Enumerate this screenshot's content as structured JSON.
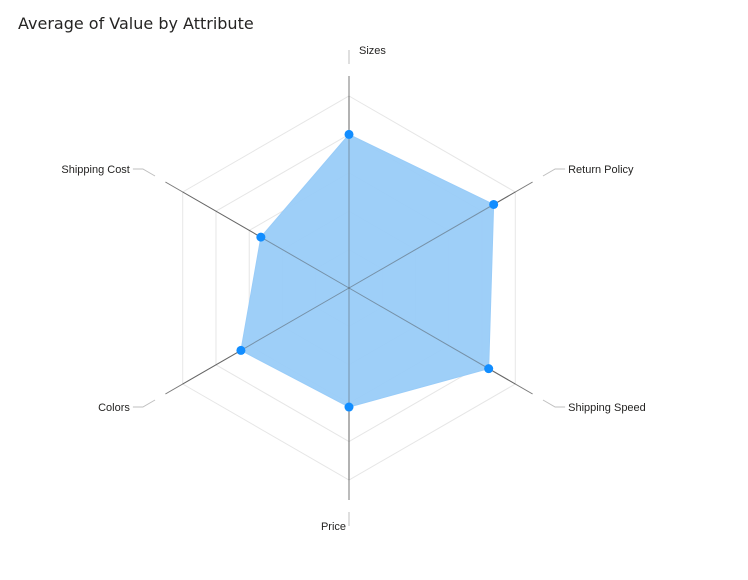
{
  "visual": {
    "title": "Average of Value by Attribute"
  },
  "colors": {
    "series_fill": "#99CCF8",
    "series_point": "#118DFF",
    "axis_line": "#4D4D4D",
    "grid_line": "#E6E6E6",
    "leader_line": "#BFBFBF",
    "text": "#252423"
  },
  "chart_data": {
    "type": "radar",
    "title": "Average of Value by Attribute",
    "categories": [
      "Sizes",
      "Return Policy",
      "Shipping Speed",
      "Price",
      "Colors",
      "Shipping Cost"
    ],
    "series": [
      {
        "values": [
          8.0,
          8.7,
          8.4,
          6.2,
          6.5,
          5.3
        ]
      }
    ],
    "axis_range": [
      0,
      10
    ],
    "grid": true,
    "grid_levels": 5,
    "legend": "none"
  }
}
